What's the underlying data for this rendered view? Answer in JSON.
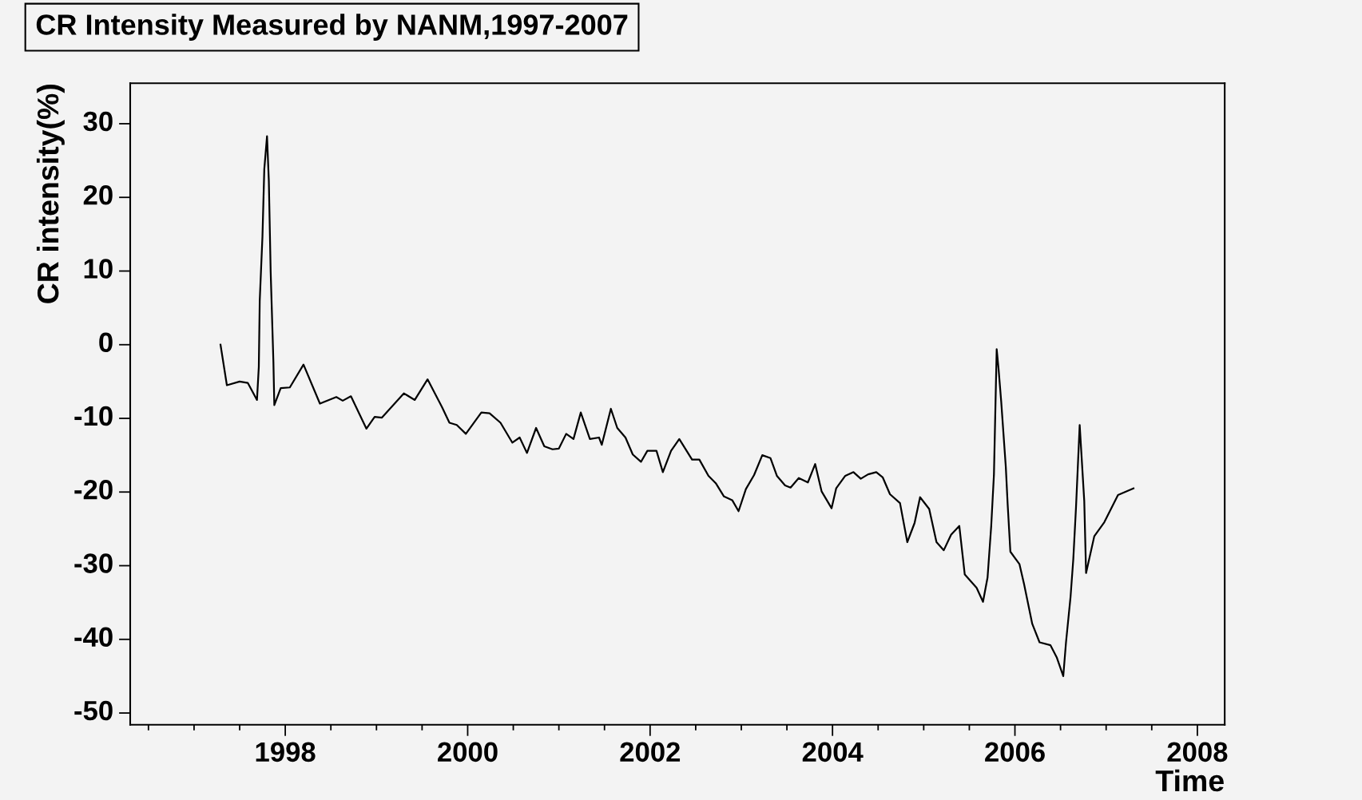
{
  "chart_data": {
    "type": "line",
    "title": "CR Intensity Measured by NANM,1997-2007",
    "xlabel": "Time",
    "ylabel": "CR intensity(%)",
    "xlim": [
      1996.3,
      2008.3
    ],
    "xticks": [
      1998,
      2000,
      2002,
      2004,
      2006,
      2008
    ],
    "ylim": [
      -51.6,
      35.5
    ],
    "yticks": [
      {
        "value": -50,
        "label": "-50"
      },
      {
        "value": -40,
        "label": "-40"
      },
      {
        "value": -30,
        "label": "-30"
      },
      {
        "value": -20,
        "label": "-20"
      },
      {
        "value": -10,
        "label": "-10"
      },
      0,
      10,
      20,
      30
    ],
    "grid": false,
    "legend": false,
    "marker": "none",
    "line_style": "solid",
    "series": [
      {
        "color": "#000000",
        "x": [
          1997.29,
          1997.36,
          1997.5,
          1997.59,
          1997.69,
          1997.71,
          1997.72,
          1997.75,
          1997.77,
          1997.8,
          1997.82,
          1997.84,
          1997.87,
          1997.88,
          1997.95,
          1998.05,
          1998.2,
          1998.38,
          1998.56,
          1998.63,
          1998.72,
          1998.89,
          1998.98,
          1999.06,
          1999.3,
          1999.42,
          1999.56,
          1999.72,
          1999.8,
          1999.88,
          1999.98,
          2000.15,
          2000.24,
          2000.36,
          2000.49,
          2000.57,
          2000.65,
          2000.75,
          2000.84,
          2000.93,
          2001.0,
          2001.08,
          2001.16,
          2001.24,
          2001.34,
          2001.44,
          2001.47,
          2001.57,
          2001.64,
          2001.73,
          2001.81,
          2001.9,
          2001.97,
          2002.07,
          2002.14,
          2002.23,
          2002.32,
          2002.46,
          2002.54,
          2002.64,
          2002.72,
          2002.81,
          2002.9,
          2002.97,
          2003.05,
          2003.14,
          2003.23,
          2003.32,
          2003.39,
          2003.48,
          2003.54,
          2003.63,
          2003.73,
          2003.81,
          2003.88,
          2003.99,
          2004.04,
          2004.14,
          2004.23,
          2004.31,
          2004.39,
          2004.48,
          2004.55,
          2004.63,
          2004.74,
          2004.82,
          2004.9,
          2004.96,
          2005.06,
          2005.14,
          2005.22,
          2005.3,
          2005.39,
          2005.45,
          2005.58,
          2005.65,
          2005.7,
          2005.74,
          2005.77,
          2005.8,
          2005.82,
          2005.85,
          2005.9,
          2005.92,
          2005.95,
          2006.05,
          2006.1,
          2006.19,
          2006.27,
          2006.39,
          2006.46,
          2006.53,
          2006.56,
          2006.61,
          2006.64,
          2006.67,
          2006.71,
          2006.76,
          2006.78,
          2006.87,
          2006.98,
          2007.13,
          2007.3
        ],
        "values": [
          0,
          -5.5,
          -5.0,
          -5.2,
          -7.5,
          -3.0,
          5.9,
          14.7,
          23.8,
          28.3,
          22.2,
          9.9,
          -2.3,
          -8.2,
          -5.9,
          -5.8,
          -2.7,
          -8.0,
          -7.1,
          -7.6,
          -7.0,
          -11.4,
          -9.8,
          -9.9,
          -6.6,
          -7.5,
          -4.7,
          -8.5,
          -10.6,
          -10.9,
          -12.1,
          -9.2,
          -9.3,
          -10.6,
          -13.3,
          -12.6,
          -14.7,
          -11.3,
          -13.8,
          -14.2,
          -14.1,
          -12.1,
          -12.8,
          -9.2,
          -12.8,
          -12.6,
          -13.6,
          -8.7,
          -11.3,
          -12.6,
          -14.9,
          -15.9,
          -14.4,
          -14.4,
          -17.3,
          -14.4,
          -12.8,
          -15.6,
          -15.6,
          -17.8,
          -18.8,
          -20.6,
          -21.1,
          -22.6,
          -19.6,
          -17.7,
          -15.0,
          -15.4,
          -17.8,
          -19.1,
          -19.4,
          -18.1,
          -18.7,
          -16.2,
          -19.9,
          -22.2,
          -19.5,
          -17.8,
          -17.3,
          -18.2,
          -17.6,
          -17.3,
          -18.0,
          -20.3,
          -21.5,
          -26.8,
          -24.2,
          -20.7,
          -22.3,
          -26.8,
          -27.9,
          -25.8,
          -24.6,
          -31.2,
          -33.0,
          -34.9,
          -31.6,
          -24.6,
          -17.6,
          -0.6,
          -3.2,
          -7.8,
          -16.6,
          -21.6,
          -28.1,
          -29.8,
          -32.5,
          -37.9,
          -40.4,
          -40.8,
          -42.5,
          -45.0,
          -40.4,
          -34.2,
          -29.1,
          -22.0,
          -10.9,
          -21.2,
          -31.0,
          -26.0,
          -24.1,
          -20.4,
          -19.5
        ]
      }
    ]
  }
}
